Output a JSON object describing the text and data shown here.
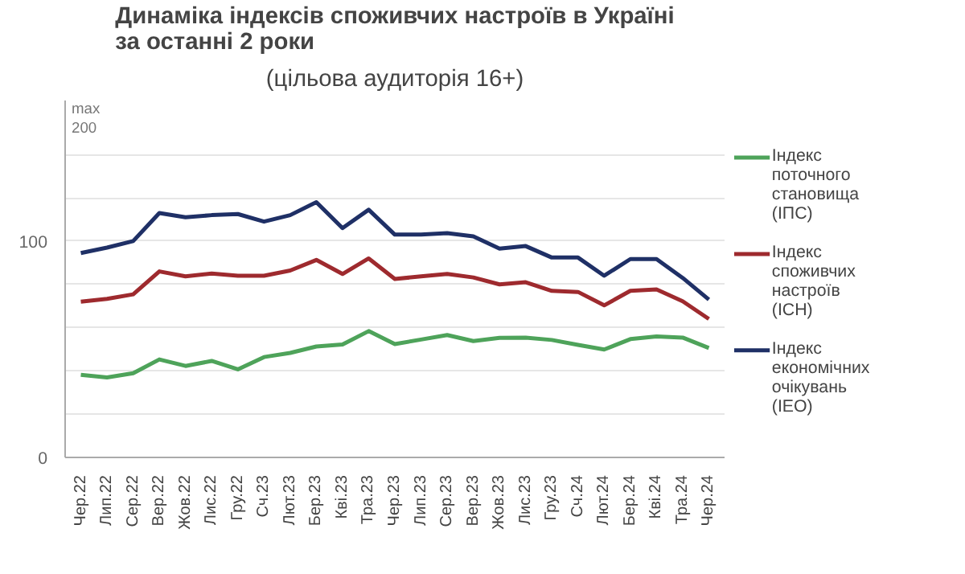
{
  "chart_data": {
    "type": "line",
    "title": "Динаміка індексів споживчих настроїв в Україні за останні 2 роки",
    "subtitle": "(цільова аудиторія 16+)",
    "categories": [
      "Чер.22",
      "Лип.22",
      "Сер.22",
      "Вер.22",
      "Жов.22",
      "Лис.22",
      "Гру.22",
      "Сч.23",
      "Лют.23",
      "Бер.23",
      "Кві.23",
      "Тра.23",
      "Чер.23",
      "Лип.23",
      "Сер.23",
      "Вер.23",
      "Жов.23",
      "Лис.23",
      "Гру.23",
      "Сч.24",
      "Лют.24",
      "Бер.24",
      "Кві.24",
      "Тра.24",
      "Чер.24"
    ],
    "series": [
      {
        "name": "Індекс поточного становища (ІПС)",
        "color": "#4ea35a",
        "values": [
          38.2,
          37,
          38.9,
          45.3,
          42.3,
          44.6,
          40.7,
          46.4,
          48.3,
          51.3,
          52.2,
          58.4,
          52.4,
          54.5,
          56.6,
          53.8,
          55.3,
          55.4,
          54.3,
          52,
          49.9,
          54.7,
          55.9,
          55.4,
          50.6
        ]
      },
      {
        "name": "Індекс споживчих настроїв (ІСН)",
        "color": "#9e2a2e",
        "values": [
          72,
          73.3,
          75.4,
          86,
          83.7,
          85,
          84,
          84,
          86.4,
          91.3,
          84.8,
          92,
          82.5,
          83.7,
          84.8,
          83.2,
          80,
          81,
          77,
          76.5,
          70.3,
          77,
          77.7,
          72.2,
          64
        ]
      },
      {
        "name": "Індекс економічних очікувань (ІЕО)",
        "color": "#1f3066",
        "values": [
          94.5,
          97,
          100,
          113,
          111,
          112,
          112.5,
          109,
          112,
          118,
          106,
          114.5,
          103,
          103,
          103.7,
          102.2,
          96.5,
          97.7,
          92.4,
          92.4,
          84,
          91.7,
          91.7,
          83,
          73
        ]
      }
    ],
    "ylim": [
      0,
      165
    ],
    "yticks": [
      0,
      {
        "value": 20,
        "label": null
      },
      {
        "value": 40,
        "label": null
      },
      {
        "value": 60,
        "label": null
      },
      {
        "value": 80,
        "label": null
      },
      100,
      {
        "value": 120,
        "label": null
      },
      {
        "value": 140,
        "label": null
      }
    ],
    "grid": "y",
    "legend": "right",
    "annotations": [
      "max 200"
    ]
  }
}
